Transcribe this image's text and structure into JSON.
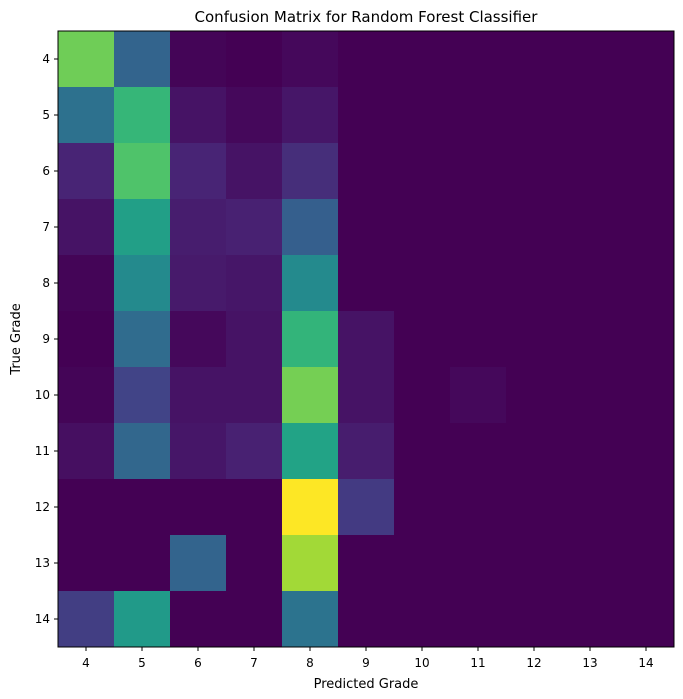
{
  "chart_data": {
    "type": "heatmap",
    "title": "Confusion Matrix for Random Forest Classifier",
    "xlabel": "Predicted Grade",
    "ylabel": "True Grade",
    "x_categories": [
      "4",
      "5",
      "6",
      "7",
      "8",
      "9",
      "10",
      "11",
      "12",
      "13",
      "14"
    ],
    "y_categories": [
      "4",
      "5",
      "6",
      "7",
      "8",
      "9",
      "10",
      "11",
      "12",
      "13",
      "14"
    ],
    "colormap": "viridis",
    "color_range": [
      0,
      1
    ],
    "values": [
      [
        0.78,
        0.32,
        0.01,
        0.0,
        0.02,
        0.0,
        0.0,
        0.0,
        0.0,
        0.0,
        0.0
      ],
      [
        0.37,
        0.66,
        0.05,
        0.02,
        0.06,
        0.0,
        0.0,
        0.0,
        0.0,
        0.0,
        0.0
      ],
      [
        0.1,
        0.72,
        0.1,
        0.05,
        0.13,
        0.0,
        0.0,
        0.0,
        0.0,
        0.0,
        0.0
      ],
      [
        0.05,
        0.56,
        0.08,
        0.09,
        0.3,
        0.0,
        0.0,
        0.0,
        0.0,
        0.0,
        0.0
      ],
      [
        0.01,
        0.47,
        0.07,
        0.06,
        0.47,
        0.0,
        0.0,
        0.0,
        0.0,
        0.0,
        0.0
      ],
      [
        0.0,
        0.35,
        0.02,
        0.05,
        0.65,
        0.05,
        0.0,
        0.0,
        0.0,
        0.0,
        0.0
      ],
      [
        0.01,
        0.2,
        0.05,
        0.05,
        0.79,
        0.05,
        0.0,
        0.02,
        0.0,
        0.0,
        0.0
      ],
      [
        0.04,
        0.33,
        0.06,
        0.09,
        0.58,
        0.08,
        0.0,
        0.0,
        0.0,
        0.0,
        0.0
      ],
      [
        0.0,
        0.0,
        0.0,
        0.0,
        1.0,
        0.17,
        0.0,
        0.0,
        0.0,
        0.0,
        0.0
      ],
      [
        0.0,
        0.0,
        0.32,
        0.0,
        0.86,
        0.0,
        0.0,
        0.0,
        0.0,
        0.0,
        0.0
      ],
      [
        0.18,
        0.54,
        0.0,
        0.0,
        0.38,
        0.0,
        0.0,
        0.0,
        0.0,
        0.0,
        0.0
      ]
    ]
  }
}
